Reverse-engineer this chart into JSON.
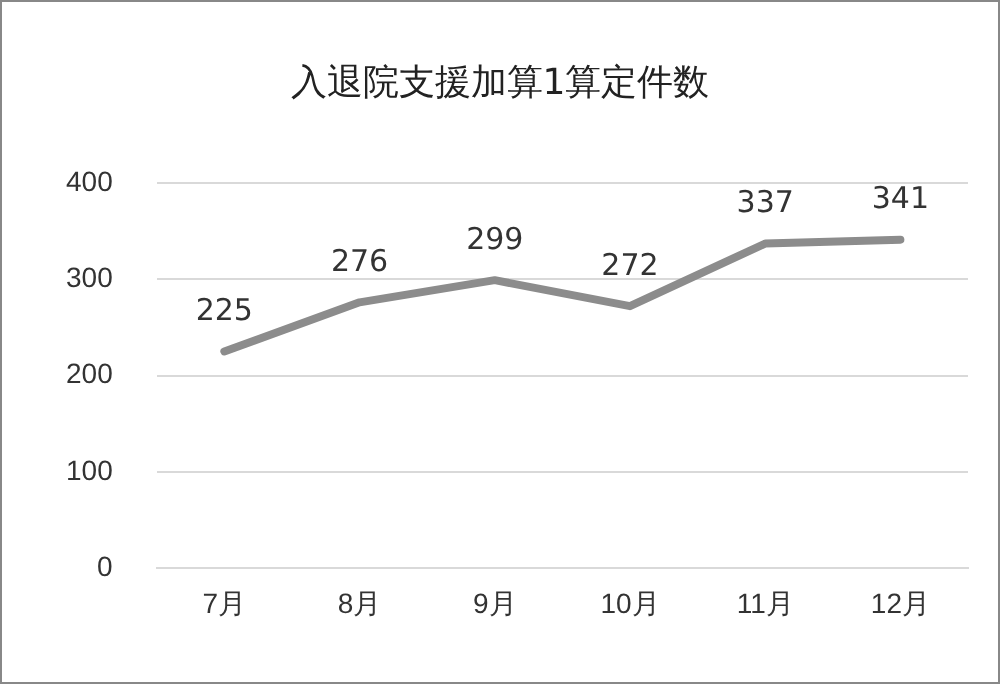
{
  "chart_data": {
    "type": "line",
    "title": "入退院支援加算1算定件数",
    "categories": [
      "7月",
      "8月",
      "9月",
      "10月",
      "11月",
      "12月"
    ],
    "series": [
      {
        "color": "#8c8c8c",
        "values": [
          225,
          276,
          299,
          272,
          337,
          341
        ]
      }
    ],
    "ylim": [
      0,
      400
    ],
    "yticks": [
      0,
      100,
      200,
      300,
      400
    ],
    "grid": "y",
    "legend": false,
    "marker": "none",
    "line_style": "solid",
    "data_labels": true
  }
}
